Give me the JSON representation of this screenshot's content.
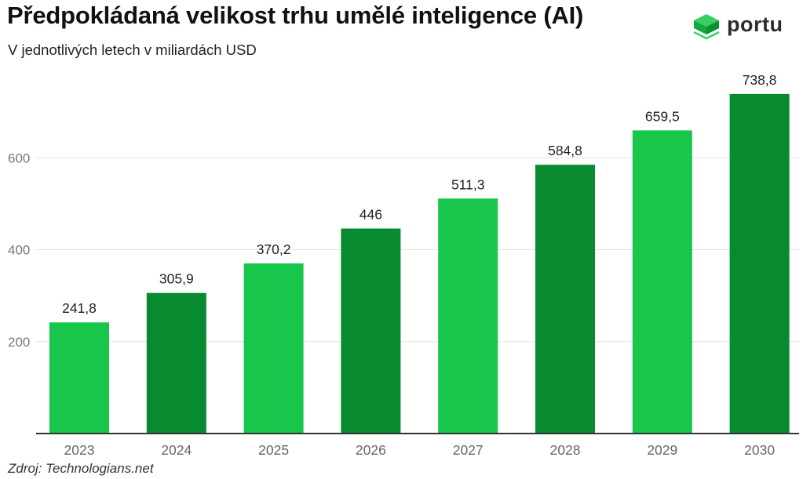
{
  "title": "Předpokládaná velikost trhu umělé inteligence (AI)",
  "subtitle": "V jednotlivých letech v miliardách USD",
  "brand": {
    "name": "portu",
    "icon": "green-cube-logo-icon",
    "color": "#1ec24a"
  },
  "source": "Zdroj: Technologians.net",
  "colors": {
    "light": "#18c64c",
    "dark": "#078a30",
    "axis": "#333333",
    "grid": "#e2e2e2"
  },
  "chart_data": {
    "type": "bar",
    "categories": [
      "2023",
      "2024",
      "2025",
      "2026",
      "2027",
      "2028",
      "2029",
      "2030"
    ],
    "values": [
      241.8,
      305.9,
      370.2,
      446,
      511.3,
      584.8,
      659.5,
      738.8
    ],
    "value_labels": [
      "241,8",
      "305,9",
      "370,2",
      "446",
      "511,3",
      "584,8",
      "659,5",
      "738,8"
    ],
    "yticks": [
      200,
      400,
      600
    ],
    "ylim": [
      0,
      800
    ],
    "xlabel": "",
    "ylabel": "",
    "grid": true,
    "legend": "none"
  }
}
